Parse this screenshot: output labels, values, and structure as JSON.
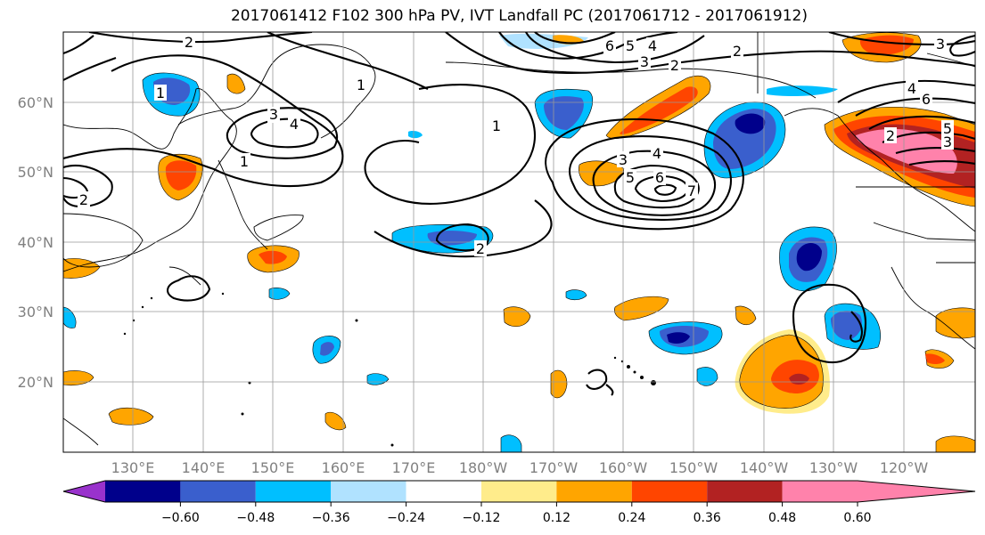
{
  "title": "2017061412 F102 300 hPa PV, IVT Landfall PC (2017061712 - 2017061912)",
  "map": {
    "lat_labels": [
      "60°N",
      "50°N",
      "40°N",
      "30°N",
      "20°N"
    ],
    "lon_labels": [
      "130°E",
      "140°E",
      "150°E",
      "160°E",
      "170°E",
      "180°W",
      "170°W",
      "160°W",
      "150°W",
      "140°W",
      "130°W",
      "120°W"
    ],
    "contour_labels": [
      "1",
      "2",
      "3",
      "4",
      "5",
      "6",
      "7"
    ]
  },
  "colorbar": {
    "tick_labels": [
      "−0.60",
      "−0.48",
      "−0.36",
      "−0.24",
      "−0.12",
      "0.12",
      "0.24",
      "0.36",
      "0.48",
      "0.60"
    ],
    "colors": [
      "#9932cc",
      "#00008b",
      "#3a5fcd",
      "#00bfff",
      "#b0e2ff",
      "#ffffff",
      "#ffec8b",
      "#ffa500",
      "#ff4500",
      "#b22222",
      "#ff82ab"
    ]
  }
}
